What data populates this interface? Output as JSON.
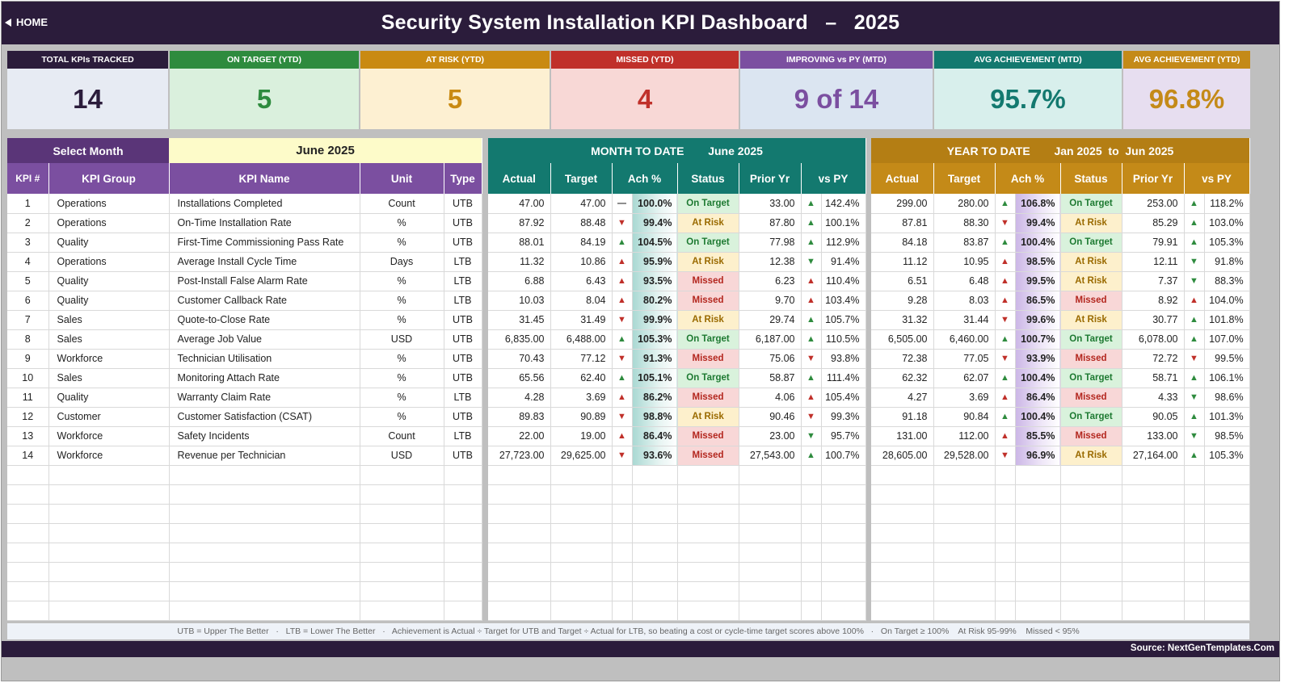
{
  "header": {
    "home_label": "HOME",
    "title": "Security System Installation KPI Dashboard   –   2025"
  },
  "cards": [
    {
      "label": "TOTAL KPIs TRACKED",
      "value": "14",
      "head_color": "#2b1c3b",
      "bg": "#e7ebf3",
      "color": "#2b1c3b"
    },
    {
      "label": "ON TARGET (YTD)",
      "value": "5",
      "head_color": "#2e8b3e",
      "bg": "#daf0dd",
      "color": "#2e8b3e"
    },
    {
      "label": "AT RISK (YTD)",
      "value": "5",
      "head_color": "#c98a12",
      "bg": "#fdf0d2",
      "color": "#c98a12"
    },
    {
      "label": "MISSED (YTD)",
      "value": "4",
      "head_color": "#c0302a",
      "bg": "#f8d8d6",
      "color": "#c0302a"
    },
    {
      "label": "IMPROVING vs PY (MTD)",
      "value": "9 of 14",
      "head_color": "#7b4fa0",
      "bg": "#dbe5f1",
      "color": "#7b4fa0"
    },
    {
      "label": "AVG ACHIEVEMENT (MTD)",
      "value": "95.7%",
      "head_color": "#13796f",
      "bg": "#d8efec",
      "color": "#13796f"
    },
    {
      "label": "AVG ACHIEVEMENT (YTD)",
      "value": "96.8%",
      "head_color": "#c48a18",
      "bg": "#e7def0",
      "color": "#c48a18"
    }
  ],
  "selector": {
    "label": "Select Month",
    "value": "June 2025"
  },
  "mtd_header": {
    "label": "MONTH TO DATE",
    "period": "June 2025"
  },
  "ytd_header": {
    "label": "YEAR TO DATE",
    "period": "Jan 2025  to  Jun 2025"
  },
  "columns": {
    "kpi_num": "KPI #",
    "group": "KPI Group",
    "name": "KPI Name",
    "unit": "Unit",
    "type": "Type",
    "actual": "Actual",
    "target": "Target",
    "ach": "Ach %",
    "status": "Status",
    "prior": "Prior Yr",
    "vspy": "vs PY"
  },
  "colors": {
    "purple": "#7b4fa0",
    "purple_dark": "#5a3578",
    "selector_bg": "#fdfbc9",
    "teal": "#13796f",
    "gold": "#b47e14"
  },
  "rows": [
    {
      "num": "1",
      "group": "Operations",
      "name": "Installations Completed",
      "unit": "Count",
      "type": "UTB",
      "m_actual": "47.00",
      "m_target": "47.00",
      "m_dir": "flat",
      "m_ach": "100.0%",
      "m_status": "On Target",
      "m_prior": "33.00",
      "m_py_dir": "up",
      "m_vspy": "142.4%",
      "y_actual": "299.00",
      "y_target": "280.00",
      "y_dir": "up",
      "y_ach": "106.8%",
      "y_status": "On Target",
      "y_prior": "253.00",
      "y_py_dir": "up",
      "y_vspy": "118.2%"
    },
    {
      "num": "2",
      "group": "Operations",
      "name": "On-Time Installation Rate",
      "unit": "%",
      "type": "UTB",
      "m_actual": "87.92",
      "m_target": "88.48",
      "m_dir": "down",
      "m_ach": "99.4%",
      "m_status": "At Risk",
      "m_prior": "87.80",
      "m_py_dir": "up",
      "m_vspy": "100.1%",
      "y_actual": "87.81",
      "y_target": "88.30",
      "y_dir": "down",
      "y_ach": "99.4%",
      "y_status": "At Risk",
      "y_prior": "85.29",
      "y_py_dir": "up",
      "y_vspy": "103.0%"
    },
    {
      "num": "3",
      "group": "Quality",
      "name": "First-Time Commissioning Pass Rate",
      "unit": "%",
      "type": "UTB",
      "m_actual": "88.01",
      "m_target": "84.19",
      "m_dir": "up",
      "m_ach": "104.5%",
      "m_status": "On Target",
      "m_prior": "77.98",
      "m_py_dir": "up",
      "m_vspy": "112.9%",
      "y_actual": "84.18",
      "y_target": "83.87",
      "y_dir": "up",
      "y_ach": "100.4%",
      "y_status": "On Target",
      "y_prior": "79.91",
      "y_py_dir": "up",
      "y_vspy": "105.3%"
    },
    {
      "num": "4",
      "group": "Operations",
      "name": "Average Install Cycle Time",
      "unit": "Days",
      "type": "LTB",
      "m_actual": "11.32",
      "m_target": "10.86",
      "m_dir": "upred",
      "m_ach": "95.9%",
      "m_status": "At Risk",
      "m_prior": "12.38",
      "m_py_dir": "downgreen",
      "m_vspy": "91.4%",
      "y_actual": "11.12",
      "y_target": "10.95",
      "y_dir": "upred",
      "y_ach": "98.5%",
      "y_status": "At Risk",
      "y_prior": "12.11",
      "y_py_dir": "downgreen",
      "y_vspy": "91.8%"
    },
    {
      "num": "5",
      "group": "Quality",
      "name": "Post-Install False Alarm Rate",
      "unit": "%",
      "type": "LTB",
      "m_actual": "6.88",
      "m_target": "6.43",
      "m_dir": "upred",
      "m_ach": "93.5%",
      "m_status": "Missed",
      "m_prior": "6.23",
      "m_py_dir": "upred",
      "m_vspy": "110.4%",
      "y_actual": "6.51",
      "y_target": "6.48",
      "y_dir": "upred",
      "y_ach": "99.5%",
      "y_status": "At Risk",
      "y_prior": "7.37",
      "y_py_dir": "downgreen",
      "y_vspy": "88.3%"
    },
    {
      "num": "6",
      "group": "Quality",
      "name": "Customer Callback Rate",
      "unit": "%",
      "type": "LTB",
      "m_actual": "10.03",
      "m_target": "8.04",
      "m_dir": "upred",
      "m_ach": "80.2%",
      "m_status": "Missed",
      "m_prior": "9.70",
      "m_py_dir": "upred",
      "m_vspy": "103.4%",
      "y_actual": "9.28",
      "y_target": "8.03",
      "y_dir": "upred",
      "y_ach": "86.5%",
      "y_status": "Missed",
      "y_prior": "8.92",
      "y_py_dir": "upred",
      "y_vspy": "104.0%"
    },
    {
      "num": "7",
      "group": "Sales",
      "name": "Quote-to-Close Rate",
      "unit": "%",
      "type": "UTB",
      "m_actual": "31.45",
      "m_target": "31.49",
      "m_dir": "down",
      "m_ach": "99.9%",
      "m_status": "At Risk",
      "m_prior": "29.74",
      "m_py_dir": "up",
      "m_vspy": "105.7%",
      "y_actual": "31.32",
      "y_target": "31.44",
      "y_dir": "down",
      "y_ach": "99.6%",
      "y_status": "At Risk",
      "y_prior": "30.77",
      "y_py_dir": "up",
      "y_vspy": "101.8%"
    },
    {
      "num": "8",
      "group": "Sales",
      "name": "Average Job Value",
      "unit": "USD",
      "type": "UTB",
      "m_actual": "6,835.00",
      "m_target": "6,488.00",
      "m_dir": "up",
      "m_ach": "105.3%",
      "m_status": "On Target",
      "m_prior": "6,187.00",
      "m_py_dir": "up",
      "m_vspy": "110.5%",
      "y_actual": "6,505.00",
      "y_target": "6,460.00",
      "y_dir": "up",
      "y_ach": "100.7%",
      "y_status": "On Target",
      "y_prior": "6,078.00",
      "y_py_dir": "up",
      "y_vspy": "107.0%"
    },
    {
      "num": "9",
      "group": "Workforce",
      "name": "Technician Utilisation",
      "unit": "%",
      "type": "UTB",
      "m_actual": "70.43",
      "m_target": "77.12",
      "m_dir": "down",
      "m_ach": "91.3%",
      "m_status": "Missed",
      "m_prior": "75.06",
      "m_py_dir": "down",
      "m_vspy": "93.8%",
      "y_actual": "72.38",
      "y_target": "77.05",
      "y_dir": "down",
      "y_ach": "93.9%",
      "y_status": "Missed",
      "y_prior": "72.72",
      "y_py_dir": "down",
      "y_vspy": "99.5%"
    },
    {
      "num": "10",
      "group": "Sales",
      "name": "Monitoring Attach Rate",
      "unit": "%",
      "type": "UTB",
      "m_actual": "65.56",
      "m_target": "62.40",
      "m_dir": "up",
      "m_ach": "105.1%",
      "m_status": "On Target",
      "m_prior": "58.87",
      "m_py_dir": "up",
      "m_vspy": "111.4%",
      "y_actual": "62.32",
      "y_target": "62.07",
      "y_dir": "up",
      "y_ach": "100.4%",
      "y_status": "On Target",
      "y_prior": "58.71",
      "y_py_dir": "up",
      "y_vspy": "106.1%"
    },
    {
      "num": "11",
      "group": "Quality",
      "name": "Warranty Claim Rate",
      "unit": "%",
      "type": "LTB",
      "m_actual": "4.28",
      "m_target": "3.69",
      "m_dir": "upred",
      "m_ach": "86.2%",
      "m_status": "Missed",
      "m_prior": "4.06",
      "m_py_dir": "upred",
      "m_vspy": "105.4%",
      "y_actual": "4.27",
      "y_target": "3.69",
      "y_dir": "upred",
      "y_ach": "86.4%",
      "y_status": "Missed",
      "y_prior": "4.33",
      "y_py_dir": "downgreen",
      "y_vspy": "98.6%"
    },
    {
      "num": "12",
      "group": "Customer",
      "name": "Customer Satisfaction (CSAT)",
      "unit": "%",
      "type": "UTB",
      "m_actual": "89.83",
      "m_target": "90.89",
      "m_dir": "down",
      "m_ach": "98.8%",
      "m_status": "At Risk",
      "m_prior": "90.46",
      "m_py_dir": "down",
      "m_vspy": "99.3%",
      "y_actual": "91.18",
      "y_target": "90.84",
      "y_dir": "up",
      "y_ach": "100.4%",
      "y_status": "On Target",
      "y_prior": "90.05",
      "y_py_dir": "up",
      "y_vspy": "101.3%"
    },
    {
      "num": "13",
      "group": "Workforce",
      "name": "Safety Incidents",
      "unit": "Count",
      "type": "LTB",
      "m_actual": "22.00",
      "m_target": "19.00",
      "m_dir": "upred",
      "m_ach": "86.4%",
      "m_status": "Missed",
      "m_prior": "23.00",
      "m_py_dir": "downgreen",
      "m_vspy": "95.7%",
      "y_actual": "131.00",
      "y_target": "112.00",
      "y_dir": "upred",
      "y_ach": "85.5%",
      "y_status": "Missed",
      "y_prior": "133.00",
      "y_py_dir": "downgreen",
      "y_vspy": "98.5%"
    },
    {
      "num": "14",
      "group": "Workforce",
      "name": "Revenue per Technician",
      "unit": "USD",
      "type": "UTB",
      "m_actual": "27,723.00",
      "m_target": "29,625.00",
      "m_dir": "down",
      "m_ach": "93.6%",
      "m_status": "Missed",
      "m_prior": "27,543.00",
      "m_py_dir": "up",
      "m_vspy": "100.7%",
      "y_actual": "28,605.00",
      "y_target": "29,528.00",
      "y_dir": "down",
      "y_ach": "96.9%",
      "y_status": "At Risk",
      "y_prior": "27,164.00",
      "y_py_dir": "up",
      "y_vspy": "105.3%"
    }
  ],
  "empty_rows": 8,
  "legend": "UTB = Upper The Better   ·   LTB = Lower The Better   ·   Achievement is Actual ÷ Target for UTB and Target ÷ Actual for LTB, so beating a cost or cycle-time target scores above 100%   ·   On Target ≥ 100%    At Risk 95-99%    Missed < 95%",
  "footer": {
    "source": "Source: NextGenTemplates.Com"
  }
}
